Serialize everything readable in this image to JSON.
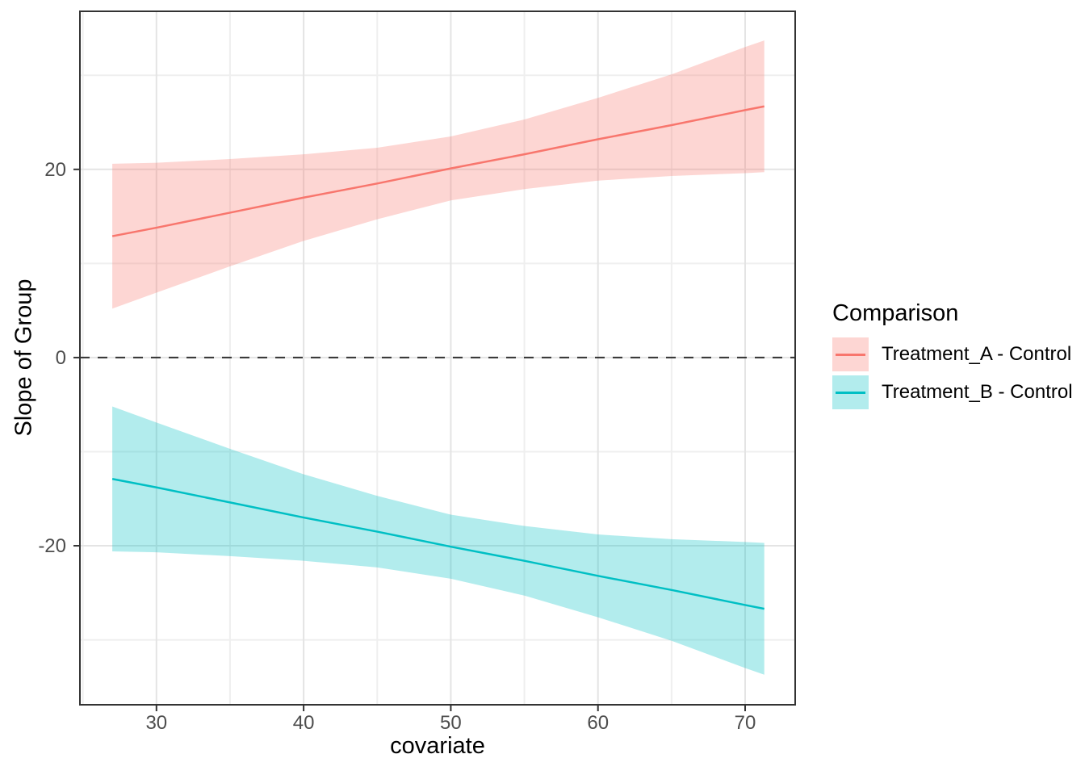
{
  "chart_data": {
    "type": "line",
    "title": "",
    "xlabel": "covariate",
    "ylabel": "Slope of Group",
    "xlim": [
      24.8,
      73.4
    ],
    "ylim": [
      -36.9,
      36.8
    ],
    "x_major_ticks": [
      30,
      40,
      50,
      60,
      70
    ],
    "x_minor_ticks": [
      25,
      35,
      45,
      55,
      65
    ],
    "y_major_ticks": [
      -20,
      0,
      20
    ],
    "y_minor_ticks": [
      -30,
      -10,
      10,
      30
    ],
    "grid": true,
    "panel_border_color": "#333333",
    "grid_major_color": "#e4e4e4",
    "grid_minor_color": "#efefef",
    "tick_label_color": "#4d4d4d",
    "reference_line": {
      "y": 0,
      "style": "dashed",
      "color": "#333333"
    },
    "legend": {
      "title": "Comparison",
      "position": "right"
    },
    "x": [
      27,
      30,
      35,
      40,
      45,
      50,
      55,
      60,
      65,
      70,
      71.3
    ],
    "series": [
      {
        "name": "Treatment_A - Control",
        "color": "#F8766D",
        "fill": "rgba(248,118,109,0.30)",
        "values": [
          12.9,
          13.8,
          15.4,
          17.0,
          18.5,
          20.1,
          21.6,
          23.2,
          24.7,
          26.3,
          26.7
        ],
        "lower": [
          5.2,
          6.9,
          9.7,
          12.4,
          14.7,
          16.7,
          17.9,
          18.8,
          19.3,
          19.6,
          19.7
        ],
        "upper": [
          20.6,
          20.7,
          21.1,
          21.6,
          22.3,
          23.5,
          25.3,
          27.6,
          30.1,
          33.0,
          33.7
        ]
      },
      {
        "name": "Treatment_B - Control",
        "color": "#00BFC4",
        "fill": "rgba(0,191,196,0.30)",
        "values": [
          -12.9,
          -13.8,
          -15.4,
          -17.0,
          -18.5,
          -20.1,
          -21.6,
          -23.2,
          -24.7,
          -26.3,
          -26.7
        ],
        "lower": [
          -20.6,
          -20.7,
          -21.1,
          -21.6,
          -22.3,
          -23.5,
          -25.3,
          -27.6,
          -30.1,
          -33.0,
          -33.7
        ],
        "upper": [
          -5.2,
          -6.9,
          -9.7,
          -12.4,
          -14.7,
          -16.7,
          -17.9,
          -18.8,
          -19.3,
          -19.6,
          -19.7
        ]
      }
    ]
  }
}
